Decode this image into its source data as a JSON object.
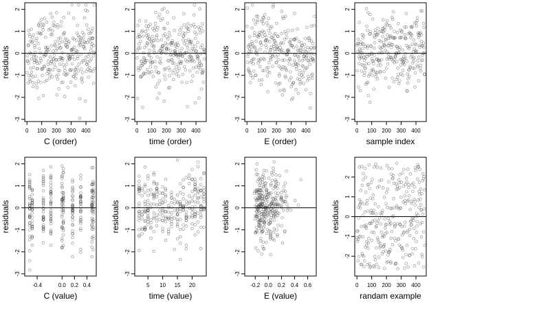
{
  "chart_data": [
    {
      "type": "scatter",
      "xlabel": "C (order)",
      "ylabel": "residuals",
      "x_ticks": [
        "0",
        "100",
        "200",
        "300",
        "400"
      ],
      "y_ticks": [
        "-3",
        "-2",
        "-1",
        "0",
        "1",
        "2"
      ],
      "xlim": [
        -15,
        470
      ],
      "ylim": [
        -3.1,
        2.3
      ],
      "reference_line_y": 0,
      "pattern": "order_cloud"
    },
    {
      "type": "scatter",
      "xlabel": "time (order)",
      "ylabel": "residuals",
      "x_ticks": [
        "0",
        "100",
        "200",
        "300",
        "400"
      ],
      "y_ticks": [
        "-3",
        "-2",
        "-1",
        "0",
        "1",
        "2"
      ],
      "xlim": [
        -15,
        470
      ],
      "ylim": [
        -3.1,
        2.3
      ],
      "reference_line_y": 0,
      "pattern": "order_cloud"
    },
    {
      "type": "scatter",
      "xlabel": "E (order)",
      "ylabel": "residuals",
      "x_ticks": [
        "0",
        "100",
        "200",
        "300",
        "400"
      ],
      "y_ticks": [
        "-3",
        "-2",
        "-1",
        "0",
        "1",
        "2"
      ],
      "xlim": [
        -15,
        470
      ],
      "ylim": [
        -3.1,
        2.3
      ],
      "reference_line_y": 0,
      "pattern": "order_trend"
    },
    {
      "type": "scatter",
      "xlabel": "sample index",
      "ylabel": "residuals",
      "x_ticks": [
        "0",
        "100",
        "200",
        "300",
        "400"
      ],
      "y_ticks": [
        "-3",
        "-2",
        "-1",
        "0",
        "1",
        "2"
      ],
      "xlim": [
        -15,
        470
      ],
      "ylim": [
        -3.1,
        2.3
      ],
      "reference_line_y": 0,
      "pattern": "order_cloud"
    },
    {
      "type": "scatter",
      "xlabel": "C (value)",
      "ylabel": "residuals",
      "x_ticks": [
        "-0.4",
        "0.0",
        "0.2",
        "0.4"
      ],
      "x_tick_values": [
        -0.4,
        0.0,
        0.2,
        0.4
      ],
      "y_ticks": [
        "-3",
        "-2",
        "-1",
        "0",
        "1",
        "2"
      ],
      "xlim": [
        -0.6,
        0.55
      ],
      "ylim": [
        -3.1,
        2.3
      ],
      "reference_line_y": 0,
      "pattern": "discrete_C"
    },
    {
      "type": "scatter",
      "xlabel": "time (value)",
      "ylabel": "residuals",
      "x_ticks": [
        "5",
        "10",
        "15",
        "20"
      ],
      "x_tick_values": [
        5,
        10,
        15,
        20
      ],
      "y_ticks": [
        "-3",
        "-2",
        "-1",
        "0",
        "1",
        "2"
      ],
      "xlim": [
        0.5,
        24.8
      ],
      "ylim": [
        -3.1,
        2.3
      ],
      "reference_line_y": 0,
      "pattern": "discrete_time"
    },
    {
      "type": "scatter",
      "xlabel": "E (value)",
      "ylabel": "residuals",
      "x_ticks": [
        "-0.2",
        "0.0",
        "0.2",
        "0.4",
        "0.6"
      ],
      "x_tick_values": [
        -0.2,
        0.0,
        0.2,
        0.4,
        0.6
      ],
      "y_ticks": [
        "-3",
        "-2",
        "-1",
        "0",
        "1",
        "2"
      ],
      "xlim": [
        -0.36,
        0.73
      ],
      "ylim": [
        -3.1,
        2.3
      ],
      "reference_line_y": 0,
      "pattern": "skewed_E"
    },
    {
      "type": "scatter",
      "xlabel": "randam example",
      "ylabel": "residuals",
      "x_ticks": [
        "0",
        "100",
        "200",
        "300",
        "400"
      ],
      "y_ticks": [
        "-2",
        "-1",
        "0",
        "1",
        "2"
      ],
      "xlim": [
        -15,
        470
      ],
      "ylim": [
        -3.0,
        3.0
      ],
      "reference_line_y": 0,
      "pattern": "random"
    }
  ]
}
